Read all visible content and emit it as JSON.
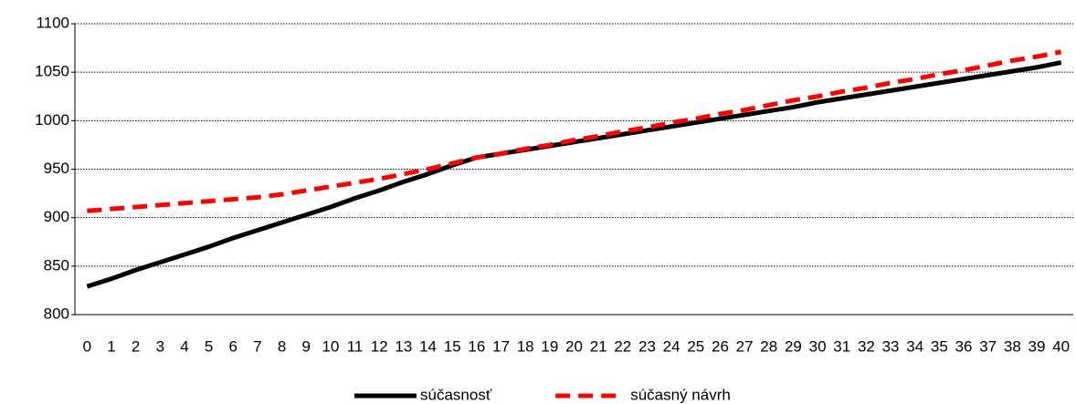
{
  "chart_data": {
    "type": "line",
    "categories": [
      "0",
      "1",
      "2",
      "3",
      "4",
      "5",
      "6",
      "7",
      "8",
      "9",
      "10",
      "11",
      "12",
      "13",
      "14",
      "15",
      "16",
      "17",
      "18",
      "19",
      "20",
      "21",
      "22",
      "23",
      "24",
      "25",
      "26",
      "27",
      "28",
      "29",
      "30",
      "31",
      "32",
      "33",
      "34",
      "35",
      "36",
      "37",
      "38",
      "39",
      "40"
    ],
    "series": [
      {
        "name": "súčasnosť",
        "color": "#000000",
        "dash": false,
        "values": [
          829,
          837,
          846,
          854,
          862,
          870,
          879,
          887,
          895,
          903,
          911,
          920,
          928,
          937,
          945,
          954,
          962,
          966,
          970,
          974,
          978,
          982,
          986,
          990,
          994,
          998,
          1002,
          1006,
          1010,
          1014,
          1019,
          1023,
          1027,
          1031,
          1035,
          1039,
          1043,
          1047,
          1051,
          1055,
          1060
        ]
      },
      {
        "name": "súčasný návrh",
        "color": "#ff0000",
        "dash": true,
        "values": [
          907,
          909,
          911,
          913,
          915,
          917,
          919,
          921,
          924,
          928,
          932,
          936,
          940,
          945,
          950,
          956,
          962,
          966,
          971,
          975,
          980,
          984,
          989,
          993,
          998,
          1002,
          1007,
          1011,
          1016,
          1021,
          1025,
          1030,
          1034,
          1039,
          1043,
          1048,
          1052,
          1057,
          1062,
          1066,
          1071
        ]
      }
    ],
    "ylim": [
      800,
      1100
    ],
    "yticks": [
      800,
      850,
      900,
      950,
      1000,
      1050,
      1100
    ],
    "grid": true,
    "legend": "bottom"
  }
}
